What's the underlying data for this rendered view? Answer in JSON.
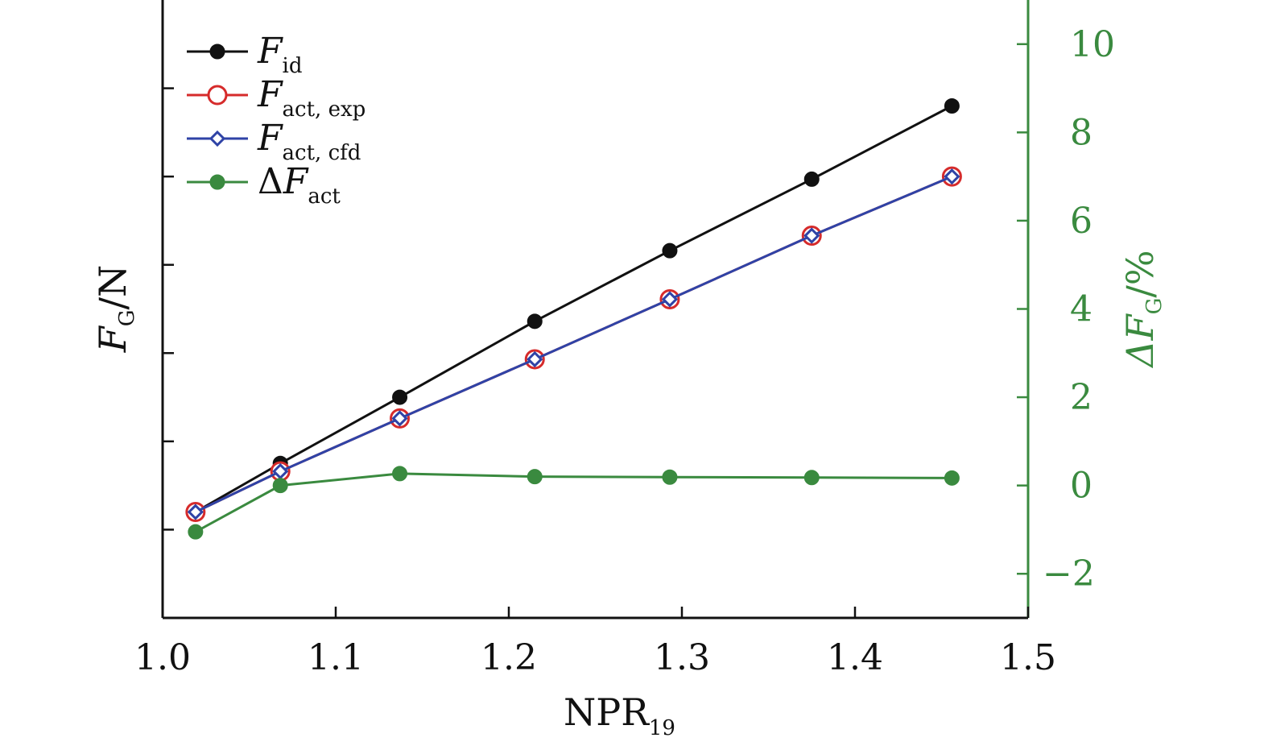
{
  "chart_data": {
    "type": "line",
    "title": "",
    "xlabel": {
      "main": "NPR",
      "sub": "19"
    },
    "ylabel_left": {
      "main": "F",
      "sub": "G",
      "suffix": "/N"
    },
    "ylabel_right": {
      "prefix": "ΔF",
      "sub": "G",
      "suffix": "/%"
    },
    "xlim": [
      1.0,
      1.5
    ],
    "xticks": [
      "1.0",
      "1.1",
      "1.2",
      "1.3",
      "1.4",
      "1.5"
    ],
    "xtick_values": [
      1.0,
      1.1,
      1.2,
      1.3,
      1.4,
      1.5
    ],
    "ylim_left": [
      0,
      7
    ],
    "left_ticks": [
      1,
      2,
      3,
      4,
      5,
      6
    ],
    "left_tick_labels_shown": false,
    "ylim_right": [
      -3,
      11
    ],
    "right_ticks": [
      -2,
      0,
      2,
      4,
      6,
      8,
      10
    ],
    "right_tick_labels": [
      "−2",
      "0",
      "2",
      "4",
      "6",
      "8",
      "10"
    ],
    "right_axis_color": "#3a8a3f",
    "x": [
      1.019,
      1.068,
      1.137,
      1.215,
      1.293,
      1.375,
      1.456
    ],
    "series": [
      {
        "name": "F_id",
        "label_main": "F",
        "label_sub": "id",
        "label_prefix": "",
        "axis": "left",
        "color": "#111111",
        "marker": "filled-circle",
        "values": [
          1.2,
          1.75,
          2.5,
          3.36,
          4.16,
          4.97,
          5.8
        ]
      },
      {
        "name": "F_act,exp",
        "label_main": "F",
        "label_sub": "act, exp",
        "label_prefix": "",
        "axis": "left",
        "color": "#d62b2b",
        "marker": "open-circle",
        "values": [
          1.2,
          1.66,
          2.26,
          2.93,
          3.61,
          4.33,
          5.0
        ]
      },
      {
        "name": "F_act,cfd",
        "label_main": "F",
        "label_sub": "act, cfd",
        "label_prefix": "",
        "axis": "left",
        "color": "#2f43a6",
        "marker": "open-diamond",
        "values": [
          1.2,
          1.66,
          2.26,
          2.93,
          3.61,
          4.33,
          5.0
        ]
      },
      {
        "name": "ΔF_act",
        "label_main": "F",
        "label_sub": "act",
        "label_prefix": "Δ",
        "axis": "right",
        "color": "#3a8a3f",
        "marker": "filled-circle",
        "values": [
          -1.05,
          0.0,
          0.27,
          0.2,
          0.19,
          0.18,
          0.17
        ]
      }
    ],
    "legend_position": "top-left"
  }
}
